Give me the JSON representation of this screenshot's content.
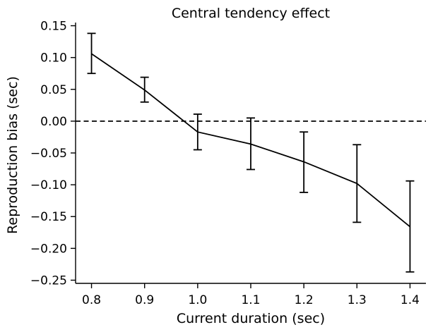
{
  "chart_data": {
    "type": "line",
    "title": "Central tendency effect",
    "xlabel": "Current duration (sec)",
    "ylabel": "Reproduction bias (sec)",
    "xlim": [
      0.77,
      1.43
    ],
    "ylim": [
      -0.255,
      0.155
    ],
    "xticks": [
      0.8,
      0.9,
      1.0,
      1.1,
      1.2,
      1.3,
      1.4
    ],
    "xtick_labels": [
      "0.8",
      "0.9",
      "1.0",
      "1.1",
      "1.2",
      "1.3",
      "1.4"
    ],
    "yticks": [
      0.15,
      0.1,
      0.05,
      0.0,
      -0.05,
      -0.1,
      -0.15,
      -0.2,
      -0.25
    ],
    "ytick_labels": [
      "0.15",
      "0.10",
      "0.05",
      "0.00",
      "−0.05",
      "−0.10",
      "−0.15",
      "−0.20",
      "−0.25"
    ],
    "reference_line": {
      "y": 0.0,
      "style": "dashed"
    },
    "grid": false,
    "series": [
      {
        "x": [
          0.8,
          0.9,
          1.0,
          1.1,
          1.2,
          1.3,
          1.4
        ],
        "y": [
          0.106,
          0.049,
          -0.017,
          -0.036,
          -0.064,
          -0.098,
          -0.166
        ],
        "err_low": [
          0.075,
          0.03,
          -0.045,
          -0.076,
          -0.112,
          -0.159,
          -0.237
        ],
        "err_high": [
          0.138,
          0.069,
          0.011,
          0.005,
          -0.017,
          -0.037,
          -0.094
        ],
        "color": "#000000"
      }
    ]
  }
}
